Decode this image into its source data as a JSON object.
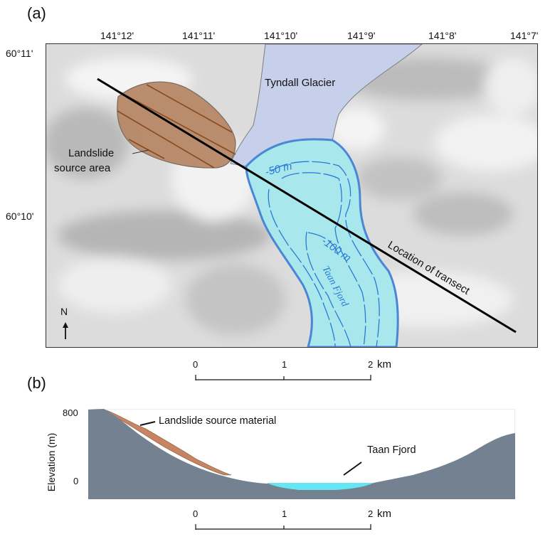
{
  "panel_a": {
    "label": "(a)",
    "lon_ticks": [
      "141°12'",
      "141°11'",
      "141°10'",
      "141°9'",
      "141°8'",
      "141°7'"
    ],
    "lat_ticks": [
      "60°11'",
      "60°10'"
    ],
    "glacier_label": "Tyndall Glacier",
    "landslide_label_line1": "Landslide",
    "landslide_label_line2": "source area",
    "contour_50": "-50 m",
    "contour_100": "-100 m",
    "fjord_label": "Taan Fjord",
    "transect_label": "Location of transect",
    "north_label": "N",
    "scale": {
      "ticks": [
        "0",
        "1",
        "2"
      ],
      "unit": "km"
    }
  },
  "panel_b": {
    "label": "(b)",
    "ylabel": "Elevation (m)",
    "yticks": [
      "800",
      "0"
    ],
    "landslide_label": "Landslide source material",
    "fjord_label": "Taan Fjord",
    "scale": {
      "ticks": [
        "0",
        "1",
        "2"
      ],
      "unit": "km"
    }
  },
  "colors": {
    "glacier": "#c7d0ea",
    "fjord": "#a8e8ec",
    "fjord_outline": "#4a86d4",
    "contour": "#2a78d8",
    "landslide": "#b48462",
    "landslide_stripes": "#8a4a1e",
    "terrain_section": "#738190",
    "water_section": "#66e6f2",
    "slide_section": "#c78462"
  }
}
